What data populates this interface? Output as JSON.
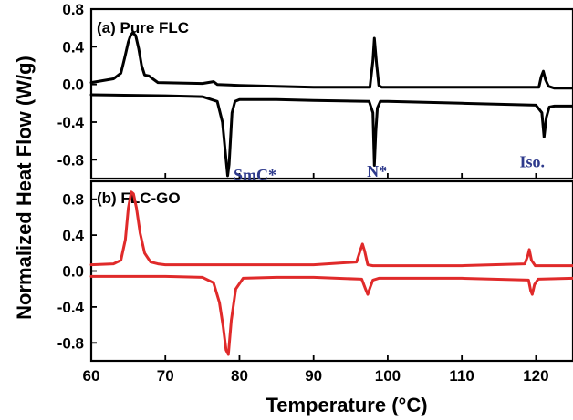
{
  "chart_data": [
    {
      "type": "line",
      "panel_label": "(a) Pure FLC",
      "ylabel": "Normalized Heat Flow (W/g)",
      "xlabel": "Temperature (°C)",
      "xlim": [
        60,
        125
      ],
      "ylim": [
        -1.0,
        0.8
      ],
      "x_ticks": [
        "60",
        "70",
        "80",
        "90",
        "100",
        "110",
        "120"
      ],
      "y_ticks": [
        "0.8",
        "0.4",
        "0.0",
        "-0.4",
        "-0.8"
      ],
      "color": "#000000",
      "series": [
        {
          "x": [
            60,
            63,
            64,
            64.5,
            65,
            65.3,
            65.6,
            66,
            66.4,
            66.8,
            67.2,
            67.8,
            68.3,
            69,
            75,
            76.5,
            77,
            80,
            90,
            97.6,
            98,
            98.2,
            98.5,
            98.8,
            99.2,
            100,
            110,
            120.4,
            120.7,
            121,
            121.3,
            121.7,
            122.5,
            125
          ],
          "y": [
            0.02,
            0.06,
            0.12,
            0.28,
            0.45,
            0.52,
            0.55,
            0.52,
            0.38,
            0.2,
            0.1,
            0.09,
            0.06,
            0.02,
            0.01,
            0.03,
            0.0,
            -0.01,
            -0.03,
            -0.03,
            0.25,
            0.49,
            0.22,
            -0.01,
            -0.03,
            -0.03,
            -0.03,
            -0.03,
            0.08,
            0.14,
            0.05,
            -0.02,
            -0.04,
            -0.04
          ]
        },
        {
          "x": [
            60,
            70,
            75,
            77,
            77.7,
            78.1,
            78.4,
            78.6,
            79,
            79.4,
            80,
            85,
            90,
            97.5,
            98,
            98.2,
            98.4,
            98.6,
            99,
            99.5,
            100,
            110,
            120,
            120.8,
            121.1,
            121.4,
            121.8,
            122.5,
            125
          ],
          "y": [
            -0.11,
            -0.12,
            -0.13,
            -0.18,
            -0.4,
            -0.72,
            -0.97,
            -0.85,
            -0.3,
            -0.18,
            -0.16,
            -0.16,
            -0.17,
            -0.18,
            -0.3,
            -0.86,
            -0.5,
            -0.25,
            -0.18,
            -0.18,
            -0.18,
            -0.2,
            -0.22,
            -0.3,
            -0.56,
            -0.35,
            -0.24,
            -0.23,
            -0.23
          ]
        }
      ],
      "annotations": [
        {
          "text": "SmC*",
          "x": 79.2,
          "y": -1.02
        },
        {
          "text": "N*",
          "x": 97.2,
          "y": -0.98
        },
        {
          "text": "Iso.",
          "x": 117.8,
          "y": -0.88
        }
      ]
    },
    {
      "type": "line",
      "panel_label": "(b) FLC-GO",
      "ylabel": "Normalized Heat Flow (W/g)",
      "xlabel": "Temperature (°C)",
      "xlim": [
        60,
        125
      ],
      "ylim": [
        -1.0,
        1.0
      ],
      "x_ticks": [
        "60",
        "70",
        "80",
        "90",
        "100",
        "110",
        "120"
      ],
      "y_ticks": [
        "0.8",
        "0.4",
        "0.0",
        "-0.4",
        "-0.8"
      ],
      "color": "#e02a2a",
      "series": [
        {
          "x": [
            60,
            63,
            64,
            64.6,
            65,
            65.4,
            65.7,
            66.1,
            66.6,
            67.2,
            68,
            69,
            70,
            80,
            90,
            95.8,
            96.3,
            96.6,
            96.9,
            97.3,
            98,
            100,
            110,
            118.5,
            118.9,
            119.1,
            119.4,
            119.9,
            121,
            125
          ],
          "y": [
            0.07,
            0.08,
            0.12,
            0.35,
            0.7,
            0.88,
            0.86,
            0.7,
            0.42,
            0.2,
            0.1,
            0.08,
            0.07,
            0.07,
            0.07,
            0.1,
            0.23,
            0.3,
            0.22,
            0.07,
            0.06,
            0.06,
            0.06,
            0.08,
            0.17,
            0.24,
            0.12,
            0.06,
            0.06,
            0.06
          ]
        },
        {
          "x": [
            60,
            70,
            75,
            76.5,
            77.3,
            77.8,
            78.2,
            78.5,
            78.9,
            79.5,
            80.5,
            85,
            90,
            96.5,
            97,
            97.3,
            97.6,
            98,
            98.8,
            100,
            110,
            119,
            119.3,
            119.5,
            119.8,
            120.3,
            125
          ],
          "y": [
            -0.06,
            -0.06,
            -0.07,
            -0.13,
            -0.35,
            -0.62,
            -0.88,
            -0.93,
            -0.55,
            -0.2,
            -0.08,
            -0.07,
            -0.07,
            -0.09,
            -0.2,
            -0.26,
            -0.19,
            -0.1,
            -0.08,
            -0.08,
            -0.08,
            -0.1,
            -0.22,
            -0.26,
            -0.15,
            -0.09,
            -0.08
          ]
        }
      ]
    }
  ]
}
